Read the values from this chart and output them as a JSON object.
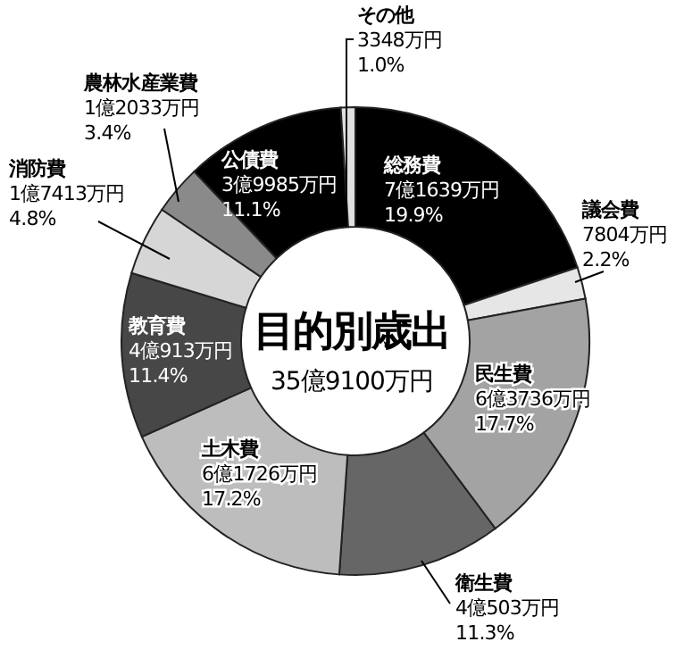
{
  "chart_data": {
    "type": "donut",
    "title": "目的別歳出",
    "subtitle": "35億9100万円",
    "categories": [
      "総務費",
      "議会費",
      "民生費",
      "衛生費",
      "土木費",
      "教育費",
      "消防費",
      "農林水産業費",
      "公債費",
      "その他"
    ],
    "values": [
      19.9,
      2.2,
      17.7,
      11.3,
      17.2,
      11.4,
      4.8,
      3.4,
      11.1,
      1.0
    ],
    "value_labels": [
      "7億1639万円\n19.9%",
      "7804万円\n2.2%",
      "6億3736万円\n17.7%",
      "4億503万円\n11.3%",
      "6億1726万円\n17.2%",
      "4億913万円\n11.4%",
      "1億7413万円\n4.8%",
      "1億2033万円\n3.4%",
      "3億9985万円\n11.1%",
      "3348万円\n1.0%"
    ],
    "colors": [
      "#000000",
      "#e6e6e6",
      "#a3a3a3",
      "#666666",
      "#bdbdbd",
      "#474747",
      "#d6d6d6",
      "#8a8a8a",
      "#000000",
      "#e0e0e0"
    ]
  }
}
